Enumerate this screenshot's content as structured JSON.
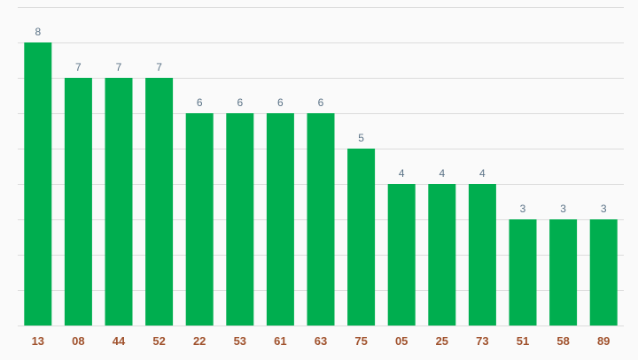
{
  "chart_data": {
    "type": "bar",
    "categories": [
      "13",
      "08",
      "44",
      "52",
      "22",
      "53",
      "61",
      "63",
      "75",
      "05",
      "25",
      "73",
      "51",
      "58",
      "89"
    ],
    "values": [
      8,
      7,
      7,
      7,
      6,
      6,
      6,
      6,
      5,
      4,
      4,
      4,
      3,
      3,
      3
    ],
    "ylim": [
      0,
      9
    ],
    "grid": true,
    "legend": "none",
    "colors": {
      "bar": "#00ae4f",
      "data_label": "#5b7387",
      "tick_label": "#a0522d",
      "grid": "#dcdcdc",
      "background": "#fafafa"
    }
  }
}
